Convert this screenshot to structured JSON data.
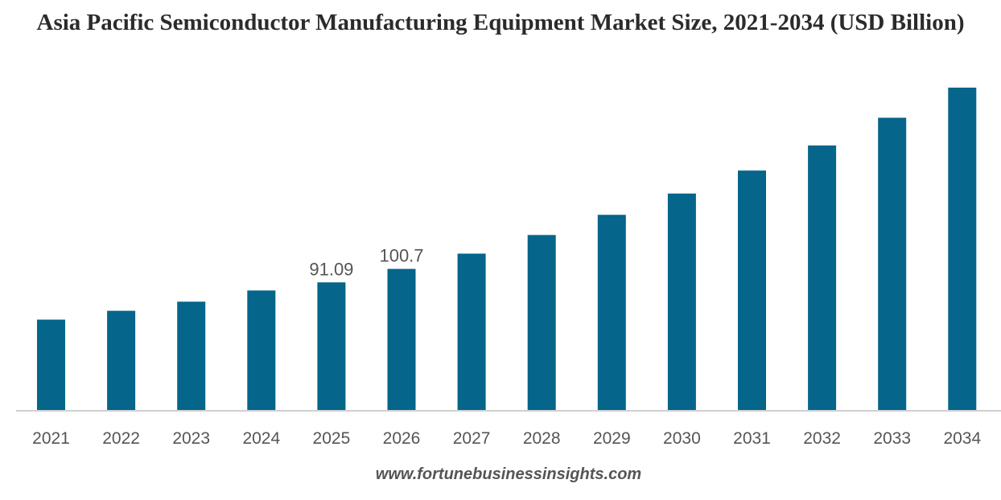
{
  "title": "Asia Pacific Semiconductor Manufacturing Equipment Market Size, 2021-2034 (USD Billion)",
  "source": "www.fortunebusinessinsights.com",
  "colors": {
    "bar": "#05658a",
    "axis": "#d0d0d0",
    "text": "#555555"
  },
  "chart_data": {
    "type": "bar",
    "title": "Asia Pacific Semiconductor Manufacturing Equipment Market Size, 2021-2034 (USD Billion)",
    "xlabel": "",
    "ylabel": "",
    "categories": [
      "2021",
      "2022",
      "2023",
      "2024",
      "2025",
      "2026",
      "2027",
      "2028",
      "2029",
      "2030",
      "2031",
      "2032",
      "2033",
      "2034"
    ],
    "values": [
      64.5,
      70.8,
      77.3,
      85.3,
      91.09,
      100.7,
      111.6,
      124.9,
      139.3,
      154.5,
      170.9,
      188.8,
      208.6,
      230.1
    ],
    "data_labels": [
      null,
      null,
      null,
      null,
      "91.09",
      "100.7",
      null,
      null,
      null,
      null,
      null,
      null,
      null,
      null
    ],
    "ylim": [
      0,
      230.1
    ],
    "grid": false,
    "legend": "none"
  }
}
